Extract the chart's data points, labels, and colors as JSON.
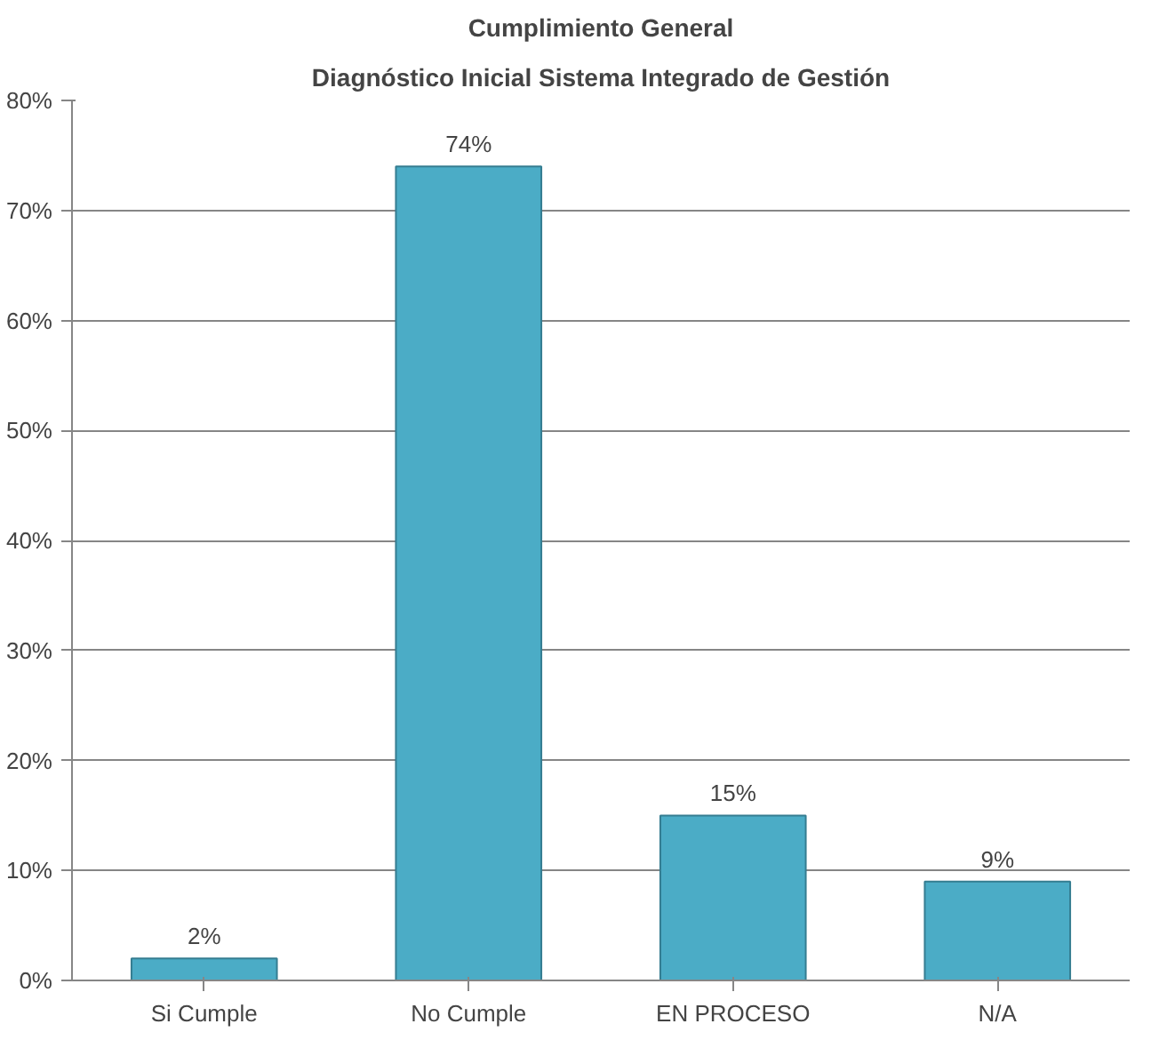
{
  "chart_data": {
    "type": "bar",
    "title": "Cumplimiento General",
    "subtitle": "Diagnóstico Inicial Sistema Integrado de Gestión",
    "categories": [
      "Si Cumple",
      "No Cumple",
      "EN PROCESO",
      "N/A"
    ],
    "values": [
      2,
      74,
      15,
      9
    ],
    "value_labels": [
      "2%",
      "74%",
      "15%",
      "9%"
    ],
    "color": "#4bacc6",
    "ylim": [
      0,
      80
    ],
    "yticks": [
      {
        "value": 0,
        "label": "0%"
      },
      {
        "value": 10,
        "label": "10%"
      },
      {
        "value": 20,
        "label": "20%"
      },
      {
        "value": 30,
        "label": "30%"
      },
      {
        "value": 40,
        "label": "40%"
      },
      {
        "value": 50,
        "label": "50%"
      },
      {
        "value": 60,
        "label": "60%"
      },
      {
        "value": 70,
        "label": "70%"
      },
      {
        "value": 80,
        "label": "80%"
      }
    ],
    "grid": "y"
  }
}
